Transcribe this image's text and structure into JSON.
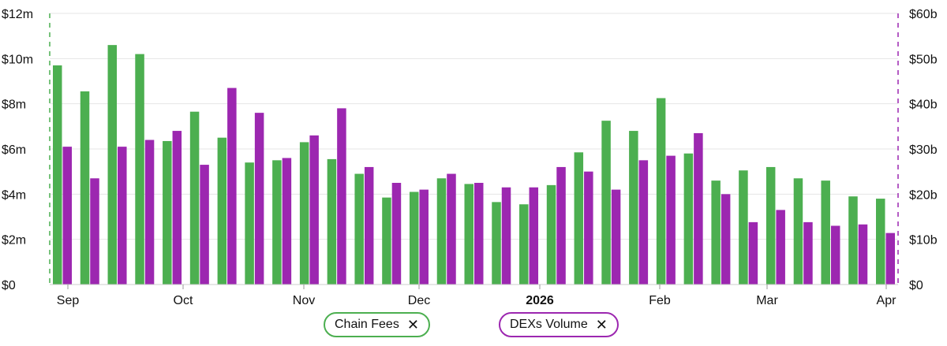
{
  "chart_data": {
    "type": "bar",
    "colors": {
      "chain_fees": "#4caf50",
      "dex_volume": "#9c27b0"
    },
    "left_axis": {
      "min": 0,
      "max": 12,
      "unit": "m",
      "ticks": [
        "$0",
        "$2m",
        "$4m",
        "$6m",
        "$8m",
        "$10m",
        "$12m"
      ]
    },
    "right_axis": {
      "min": 0,
      "max": 60,
      "unit": "b",
      "ticks": [
        "$0",
        "$10b",
        "$20b",
        "$30b",
        "$40b",
        "$50b",
        "$60b"
      ]
    },
    "x_ticks": [
      {
        "label": "Sep",
        "bold": false
      },
      {
        "label": "Oct",
        "bold": false
      },
      {
        "label": "Nov",
        "bold": false
      },
      {
        "label": "Dec",
        "bold": false
      },
      {
        "label": "2026",
        "bold": true
      },
      {
        "label": "Feb",
        "bold": false
      },
      {
        "label": "Mar",
        "bold": false
      },
      {
        "label": "Apr",
        "bold": false
      }
    ],
    "series": [
      {
        "name": "Chain Fees",
        "axis": "left",
        "unit": "$m",
        "values": [
          9.7,
          8.55,
          10.6,
          10.2,
          6.35,
          7.65,
          6.5,
          5.4,
          5.5,
          6.3,
          5.55,
          4.9,
          3.85,
          4.1,
          4.7,
          4.45,
          3.65,
          3.55,
          4.4,
          5.85,
          7.25,
          6.8,
          8.25,
          5.8,
          4.6,
          5.05,
          5.2,
          4.7,
          4.6,
          3.9,
          3.8
        ]
      },
      {
        "name": "DEXs Volume",
        "axis": "right",
        "unit": "$b",
        "values": [
          30.5,
          23.5,
          30.5,
          32,
          34,
          26.5,
          43.5,
          38,
          28,
          33,
          39,
          26,
          22.5,
          21,
          24.5,
          22.5,
          21.5,
          21.5,
          26,
          25,
          21,
          27.5,
          28.5,
          33.5,
          20,
          13.8,
          16.5,
          13.8,
          13,
          13.3,
          11.4
        ]
      }
    ],
    "grid": true
  },
  "legend": [
    {
      "label": "Chain Fees",
      "close": "✕"
    },
    {
      "label": "DEXs Volume",
      "close": "✕"
    }
  ]
}
